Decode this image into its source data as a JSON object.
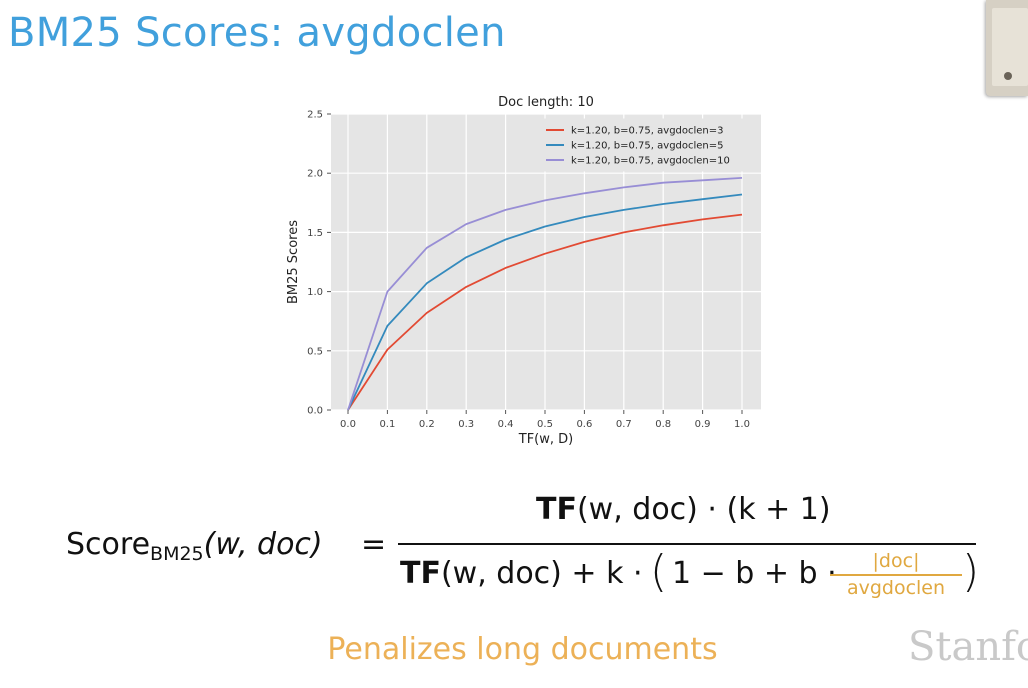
{
  "slide": {
    "title": "BM25 Scores: avgdoclen",
    "tagline": "Penalizes long documents",
    "watermark": "Stanfo"
  },
  "formula": {
    "lhs_main": "Score",
    "lhs_sub": "BM25",
    "lhs_args": "(w, doc)",
    "equals": "=",
    "num_bold": "TF",
    "num_rest": "(w, doc) · (k + 1)",
    "den_bold": "TF",
    "den_rest": "(w, doc) + k ·",
    "paren_open": "(",
    "den_inner": "1 − b + b ·",
    "frac_num": "|doc|",
    "frac_den": "avgdoclen",
    "paren_close": ")"
  },
  "colors": {
    "title": "#41a0dc",
    "tagline": "#ecb157",
    "highlight": "#e0a840",
    "plot_bg": "#e5e5e5",
    "grid": "#ffffff"
  },
  "chart_data": {
    "type": "line",
    "title": "Doc length: 10",
    "xlabel": "TF(w, D)",
    "ylabel": "BM25 Scores",
    "xlim": [
      0.0,
      1.0
    ],
    "ylim": [
      0.0,
      2.5
    ],
    "xticks": [
      "0.0",
      "0.1",
      "0.2",
      "0.3",
      "0.4",
      "0.5",
      "0.6",
      "0.7",
      "0.8",
      "0.9",
      "1.0"
    ],
    "yticks": [
      "0.0",
      "0.5",
      "1.0",
      "1.5",
      "2.0",
      "2.5"
    ],
    "grid": true,
    "legend_position": "top-right",
    "x": [
      0.0,
      0.1,
      0.2,
      0.3,
      0.4,
      0.5,
      0.6,
      0.7,
      0.8,
      0.9,
      1.0
    ],
    "series": [
      {
        "name": "k=1.20, b=0.75, avgdoclen=3",
        "color": "#e24a33",
        "values": [
          0.0,
          0.51,
          0.82,
          1.04,
          1.2,
          1.32,
          1.42,
          1.5,
          1.56,
          1.61,
          1.65
        ]
      },
      {
        "name": "k=1.20, b=0.75, avgdoclen=5",
        "color": "#348abd",
        "values": [
          0.0,
          0.71,
          1.07,
          1.29,
          1.44,
          1.55,
          1.63,
          1.69,
          1.74,
          1.78,
          1.82
        ]
      },
      {
        "name": "k=1.20, b=0.75, avgdoclen=10",
        "color": "#988ed5",
        "values": [
          0.0,
          1.0,
          1.37,
          1.57,
          1.69,
          1.77,
          1.83,
          1.88,
          1.92,
          1.94,
          1.96
        ]
      }
    ]
  }
}
